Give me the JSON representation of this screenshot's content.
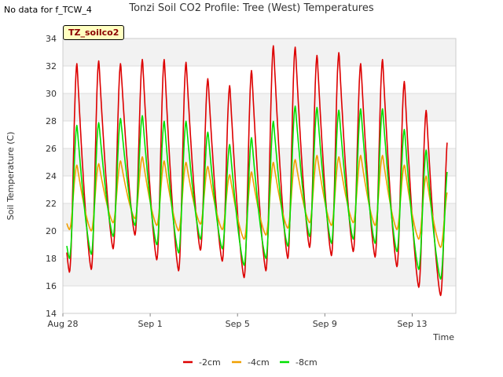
{
  "no_data_note": "No data for f_TCW_4",
  "chart_data": {
    "type": "line",
    "title": "Tonzi Soil CO2 Profile: Tree (West) Temperatures",
    "site_label": "TZ_soilco2",
    "xlabel": "Time",
    "ylabel": "Soil Temperature (C)",
    "xlim": [
      "2018-08-28",
      "2018-09-15"
    ],
    "ylim": [
      14,
      34
    ],
    "yticks": [
      14,
      16,
      18,
      20,
      22,
      24,
      26,
      28,
      30,
      32,
      34
    ],
    "xticks": [
      {
        "date": "2018-08-28",
        "label": "Aug 28"
      },
      {
        "date": "2018-09-01",
        "label": "Sep 1"
      },
      {
        "date": "2018-09-05",
        "label": "Sep 5"
      },
      {
        "date": "2018-09-09",
        "label": "Sep 9"
      },
      {
        "date": "2018-09-13",
        "label": "Sep 13"
      }
    ],
    "grid": true,
    "legend_position": "bottom",
    "series": [
      {
        "name": "-2cm",
        "color": "#dd0000",
        "daily_min": [
          17.0,
          17.2,
          18.7,
          19.7,
          17.9,
          17.1,
          18.6,
          17.8,
          16.6,
          17.1,
          18.0,
          18.8,
          18.2,
          18.5,
          18.1,
          17.4,
          15.9,
          15.3
        ],
        "daily_max": [
          32.2,
          32.4,
          32.2,
          32.5,
          32.5,
          32.3,
          31.1,
          30.6,
          31.7,
          33.5,
          33.4,
          32.8,
          33.0,
          32.2,
          32.5,
          30.9,
          28.8,
          27.0
        ]
      },
      {
        "name": "-4cm",
        "color": "#f0a000",
        "daily_min": [
          20.1,
          20.0,
          20.6,
          20.9,
          20.4,
          20.0,
          20.5,
          20.1,
          19.4,
          19.7,
          20.2,
          20.6,
          20.4,
          20.6,
          20.4,
          20.1,
          19.4,
          18.8
        ],
        "daily_max": [
          24.8,
          24.9,
          25.1,
          25.4,
          25.1,
          25.0,
          24.7,
          24.1,
          24.3,
          25.0,
          25.2,
          25.5,
          25.4,
          25.5,
          25.5,
          24.8,
          24.0,
          23.0
        ]
      },
      {
        "name": "-8cm",
        "color": "#00e000",
        "daily_min": [
          18.0,
          18.3,
          19.6,
          20.4,
          19.0,
          18.4,
          19.4,
          18.7,
          17.5,
          18.0,
          18.9,
          19.6,
          19.1,
          19.4,
          19.1,
          18.5,
          17.2,
          16.5
        ],
        "daily_max": [
          27.7,
          27.9,
          28.2,
          28.4,
          28.0,
          28.0,
          27.2,
          26.3,
          26.8,
          28.0,
          29.1,
          29.0,
          28.8,
          28.9,
          28.9,
          27.4,
          25.9,
          24.7
        ]
      }
    ]
  }
}
